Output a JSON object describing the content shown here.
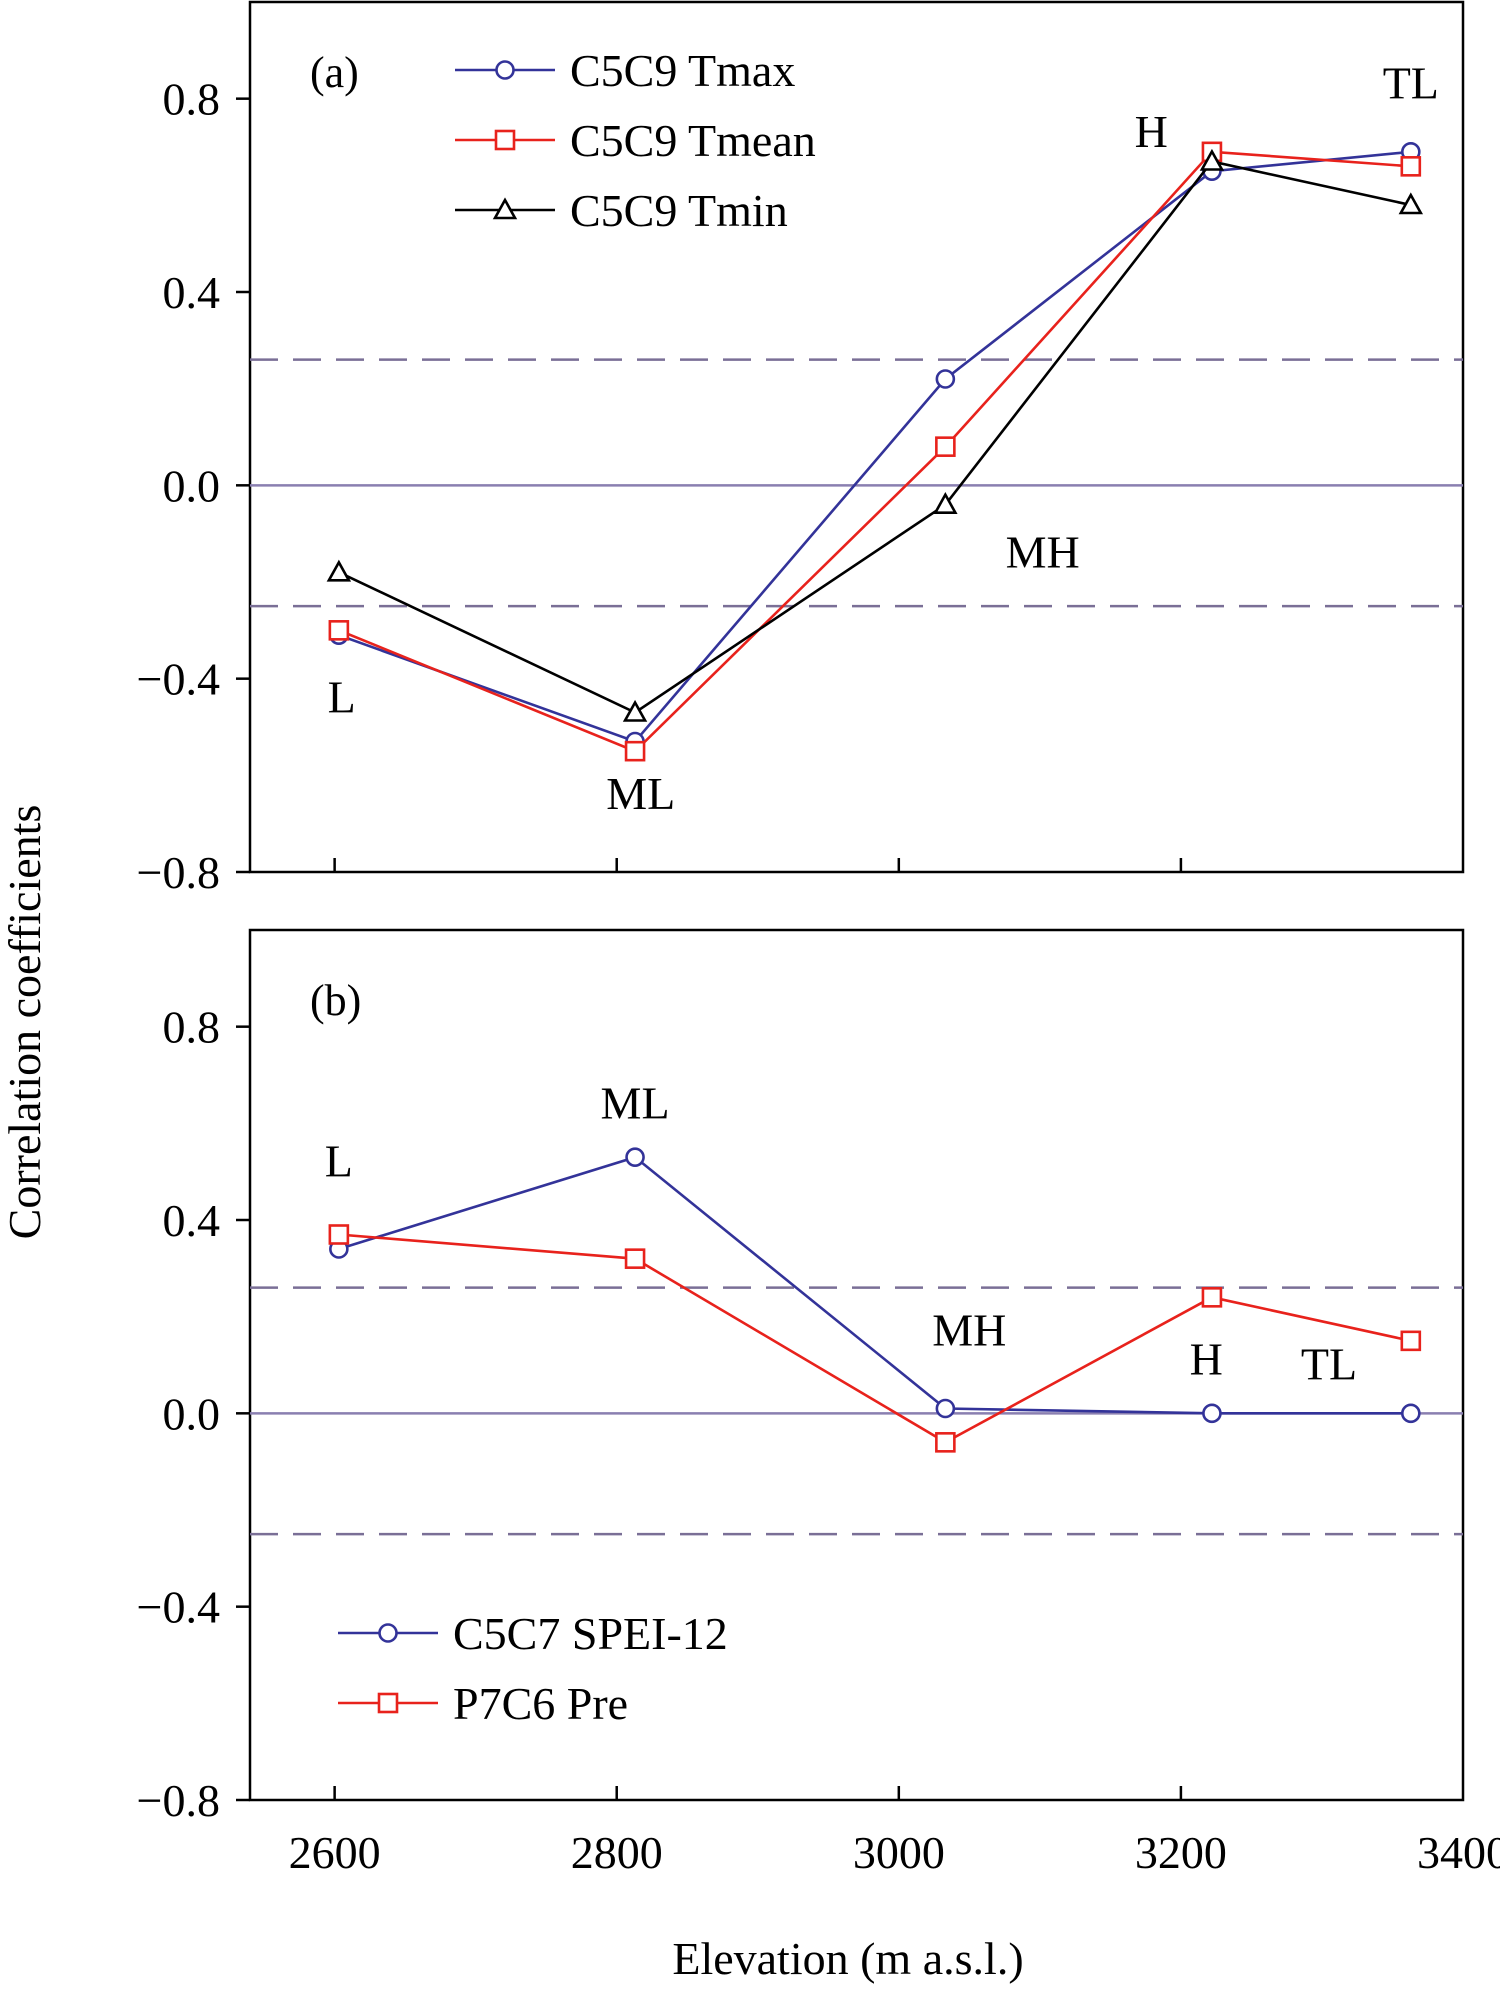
{
  "colors": {
    "blue": "#333399",
    "red": "#e8221c",
    "black": "#000000",
    "zero_line": "#8a7fb0",
    "sig_line": "#7a6f96",
    "frame": "#000000"
  },
  "x_axis": {
    "label": "Elevation (m a.s.l.)",
    "ticks": [
      2600,
      2800,
      3000,
      3200,
      3400
    ],
    "tick_labels": [
      "2600",
      "2800",
      "3000",
      "3200",
      "3400"
    ],
    "xlim": [
      2540,
      3400
    ]
  },
  "y_axis": {
    "label": "Correlation coefficients",
    "ticks": [
      -0.8,
      -0.4,
      0.0,
      0.4,
      0.8
    ],
    "tick_labels": [
      "−0.8",
      "−0.4",
      "0.0",
      "0.4",
      "0.8"
    ],
    "ylim": [
      -0.8,
      1.0
    ]
  },
  "chart_data": [
    {
      "type": "line",
      "panel_label": "(a)",
      "x": [
        2603,
        2813,
        3033,
        3222,
        3363
      ],
      "ylim": [
        -0.8,
        1.0
      ],
      "significance_lines": [
        0.26,
        -0.25
      ],
      "zero_line": true,
      "legend_position": "top-left",
      "series": [
        {
          "name": "C5C9 Tmax",
          "color": "#333399",
          "marker": "circle",
          "values": [
            -0.31,
            -0.53,
            0.22,
            0.65,
            0.69
          ]
        },
        {
          "name": "C5C9 Tmean",
          "color": "#e8221c",
          "marker": "square",
          "values": [
            -0.3,
            -0.55,
            0.08,
            0.69,
            0.66
          ]
        },
        {
          "name": "C5C9 Tmin",
          "color": "#000000",
          "marker": "triangle",
          "values": [
            -0.18,
            -0.47,
            -0.04,
            0.67,
            0.58
          ]
        }
      ],
      "annotations": [
        {
          "text": "L",
          "x": 2605,
          "y": -0.47
        },
        {
          "text": "ML",
          "x": 2817,
          "y": -0.67
        },
        {
          "text": "MH",
          "x": 3102,
          "y": -0.17
        },
        {
          "text": "H",
          "x": 3179,
          "y": 0.7
        },
        {
          "text": "TL",
          "x": 3363,
          "y": 0.8
        }
      ]
    },
    {
      "type": "line",
      "panel_label": "(b)",
      "x": [
        2603,
        2813,
        3033,
        3222,
        3363
      ],
      "ylim": [
        -0.8,
        1.0
      ],
      "significance_lines": [
        0.26,
        -0.25
      ],
      "zero_line": true,
      "legend_position": "bottom-left",
      "series": [
        {
          "name": "C5C7 SPEI-12",
          "color": "#333399",
          "marker": "circle",
          "values": [
            0.34,
            0.53,
            0.01,
            0.0,
            0.0
          ]
        },
        {
          "name": "P7C6 Pre",
          "color": "#e8221c",
          "marker": "square",
          "values": [
            0.37,
            0.32,
            -0.06,
            0.24,
            0.15
          ]
        }
      ],
      "annotations": [
        {
          "text": "L",
          "x": 2603,
          "y": 0.49
        },
        {
          "text": "ML",
          "x": 2813,
          "y": 0.61
        },
        {
          "text": "MH",
          "x": 3050,
          "y": 0.14
        },
        {
          "text": "H",
          "x": 3218,
          "y": 0.08
        },
        {
          "text": "TL",
          "x": 3305,
          "y": 0.07
        }
      ]
    }
  ]
}
